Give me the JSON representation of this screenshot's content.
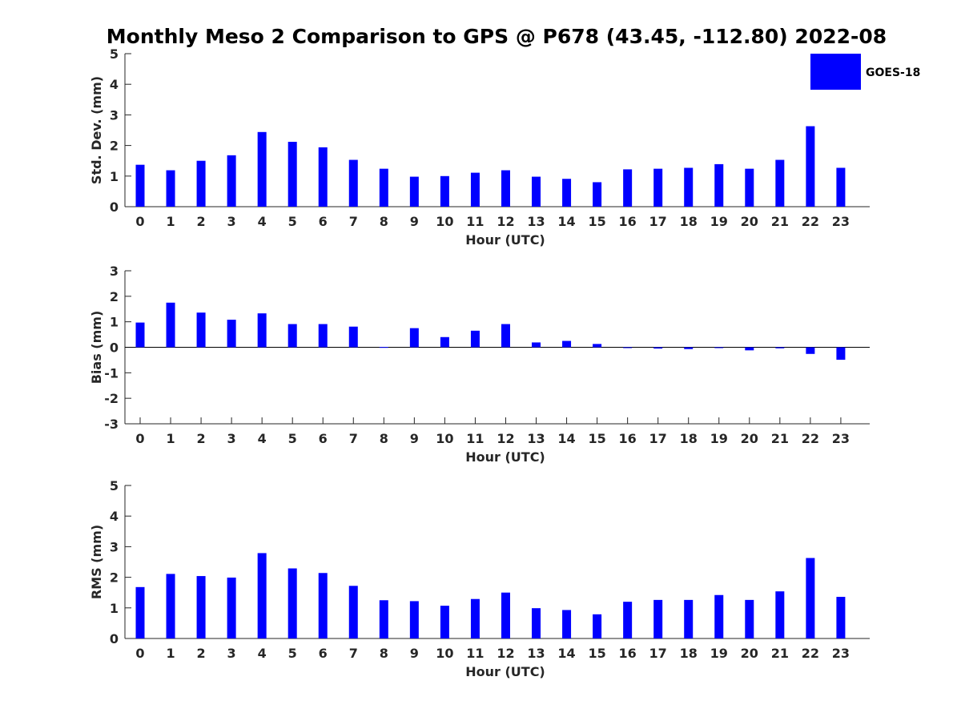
{
  "title": "Monthly Meso 2 Comparison to GPS @ P678 (43.45, -112.80) 2022-08",
  "legend": {
    "label": "GOES-18",
    "color": "#0000ff"
  },
  "chart_data": [
    {
      "type": "bar",
      "title": "Monthly Meso 2 Comparison to GPS @ P678 (43.45, -112.80) 2022-08",
      "xlabel": "Hour (UTC)",
      "ylabel": "Std. Dev. (mm)",
      "ylim": [
        0,
        5
      ],
      "yticks": [
        0,
        1,
        2,
        3,
        4,
        5
      ],
      "categories": [
        "0",
        "1",
        "2",
        "3",
        "4",
        "5",
        "6",
        "7",
        "8",
        "9",
        "10",
        "11",
        "12",
        "13",
        "14",
        "15",
        "16",
        "17",
        "18",
        "19",
        "20",
        "21",
        "22",
        "23"
      ],
      "series": [
        {
          "name": "GOES-18",
          "color": "#0000ff",
          "values": [
            1.37,
            1.19,
            1.5,
            1.68,
            2.44,
            2.12,
            1.94,
            1.53,
            1.24,
            0.98,
            1.0,
            1.11,
            1.19,
            0.98,
            0.91,
            0.8,
            1.22,
            1.24,
            1.27,
            1.39,
            1.24,
            1.53,
            2.63,
            1.27
          ]
        }
      ]
    },
    {
      "type": "bar",
      "xlabel": "Hour (UTC)",
      "ylabel": "Bias (mm)",
      "ylim": [
        -3,
        3
      ],
      "yticks": [
        -3,
        -2,
        -1,
        0,
        1,
        2,
        3
      ],
      "categories": [
        "0",
        "1",
        "2",
        "3",
        "4",
        "5",
        "6",
        "7",
        "8",
        "9",
        "10",
        "11",
        "12",
        "13",
        "14",
        "15",
        "16",
        "17",
        "18",
        "19",
        "20",
        "21",
        "22",
        "23"
      ],
      "series": [
        {
          "name": "GOES-18",
          "color": "#0000ff",
          "values": [
            0.97,
            1.75,
            1.36,
            1.08,
            1.33,
            0.91,
            0.91,
            0.81,
            0.01,
            0.75,
            0.4,
            0.65,
            0.91,
            0.19,
            0.25,
            0.13,
            -0.01,
            -0.05,
            -0.07,
            -0.01,
            -0.12,
            -0.04,
            -0.26,
            -0.49
          ]
        }
      ]
    },
    {
      "type": "bar",
      "xlabel": "Hour (UTC)",
      "ylabel": "RMS (mm)",
      "ylim": [
        0,
        5
      ],
      "yticks": [
        0,
        1,
        2,
        3,
        4,
        5
      ],
      "categories": [
        "0",
        "1",
        "2",
        "3",
        "4",
        "5",
        "6",
        "7",
        "8",
        "9",
        "10",
        "11",
        "12",
        "13",
        "14",
        "15",
        "16",
        "17",
        "18",
        "19",
        "20",
        "21",
        "22",
        "23"
      ],
      "series": [
        {
          "name": "GOES-18",
          "color": "#0000ff",
          "values": [
            1.68,
            2.11,
            2.04,
            1.99,
            2.79,
            2.29,
            2.14,
            1.72,
            1.25,
            1.22,
            1.07,
            1.29,
            1.5,
            0.99,
            0.93,
            0.79,
            1.2,
            1.26,
            1.26,
            1.42,
            1.26,
            1.54,
            2.63,
            1.36
          ]
        }
      ]
    }
  ]
}
